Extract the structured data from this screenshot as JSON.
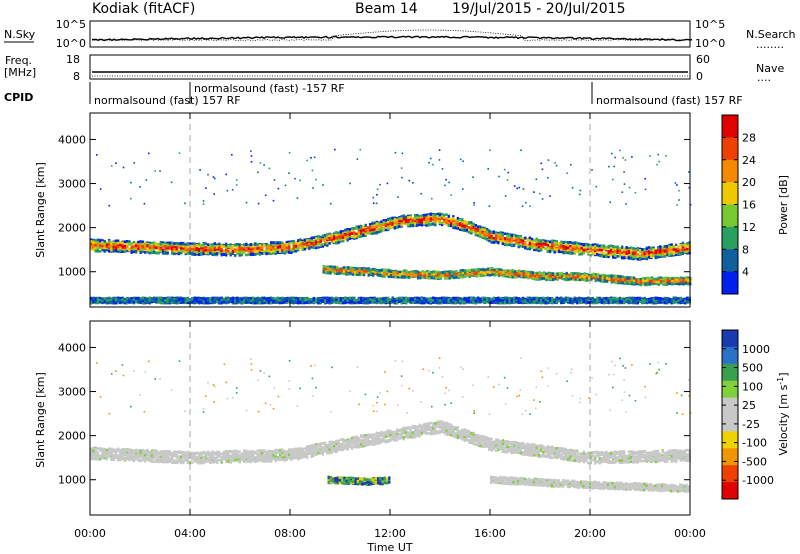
{
  "header": {
    "radar": "Kodiak (fitACF)",
    "beam": "Beam 14",
    "dates": "19/Jul/2015 - 20/Jul/2015"
  },
  "panels": {
    "nsky": {
      "left_label": "N.Sky",
      "right_label": "N.Search",
      "right_dots": "........",
      "ticks_left": [
        "10^5",
        "10^0"
      ],
      "ticks_right": [
        "10^5",
        "10^0"
      ]
    },
    "freq": {
      "left_label_1": "Freq.",
      "left_label_2": "[MHz]",
      "right_label": "Nave",
      "right_dots": "....",
      "ticks_left": [
        "18",
        "8"
      ],
      "ticks_right": [
        "60",
        "0"
      ]
    },
    "cpid": {
      "left_label": "CPID",
      "segments": [
        "normalsound (fast) 157 RF",
        "normalsound (fast) -157 RF",
        "normalsound (fast) 157 RF"
      ]
    }
  },
  "colorbars": {
    "power": {
      "label": "Power [dB]",
      "ticks": [
        "28",
        "24",
        "20",
        "16",
        "12",
        "8",
        "4"
      ],
      "colors": [
        "#e00000",
        "#f04000",
        "#f58a00",
        "#f0c800",
        "#78c832",
        "#2aa060",
        "#1060a0",
        "#0020f0"
      ]
    },
    "velocity": {
      "label": "Velocity [m s^-1]",
      "label_main": "Velocity [m s",
      "label_sup": "-1",
      "label_end": "]",
      "ticks": [
        "1000",
        "500",
        "100",
        "25",
        "-25",
        "-100",
        "-500",
        "-1000"
      ],
      "colors": [
        "#1a3ab0",
        "#2a72c8",
        "#3aa050",
        "#7fd03a",
        "#c8c8c8",
        "#c8c8c8",
        "#f0d200",
        "#f09600",
        "#f04000",
        "#e00000"
      ]
    }
  },
  "chart_data": [
    {
      "type": "heatmap",
      "title": "",
      "quantity": "Power [dB]",
      "xlabel": "",
      "ylabel": "Slant Range [km]",
      "x_ticks": [
        "00:00",
        "04:00",
        "08:00",
        "12:00",
        "16:00",
        "20:00",
        "00:00"
      ],
      "y_ticks": [
        "1000",
        "2000",
        "3000",
        "4000"
      ],
      "xlim": [
        0,
        24
      ],
      "ylim": [
        200,
        4600
      ],
      "color_scale": [
        0,
        30
      ],
      "bands": [
        {
          "name": "upper echo band",
          "points": [
            [
              0,
              1600
            ],
            [
              4,
              1520
            ],
            [
              6,
              1500
            ],
            [
              8,
              1560
            ],
            [
              9.3,
              1700
            ],
            [
              11,
              1950
            ],
            [
              12.5,
              2150
            ],
            [
              14,
              2200
            ],
            [
              15,
              2050
            ],
            [
              16,
              1800
            ],
            [
              18,
              1600
            ],
            [
              20,
              1500
            ],
            [
              22,
              1400
            ],
            [
              24,
              1550
            ]
          ],
          "power_db": 22
        },
        {
          "name": "lower echo band",
          "points": [
            [
              9.3,
              1050
            ],
            [
              11,
              1000
            ],
            [
              12,
              960
            ],
            [
              14,
              920
            ],
            [
              16,
              1000
            ],
            [
              18,
              900
            ],
            [
              20,
              880
            ],
            [
              22,
              780
            ],
            [
              24,
              800
            ]
          ],
          "power_db": 18
        },
        {
          "name": "near-range clutter",
          "points": [
            [
              0,
              350
            ],
            [
              24,
              350
            ]
          ],
          "power_db": 6
        }
      ],
      "gridlines_x_dashed": [
        4,
        20
      ]
    },
    {
      "type": "heatmap",
      "title": "",
      "quantity": "Velocity [m s^-1]",
      "xlabel": "Time UT",
      "ylabel": "Slant Range [km]",
      "x_ticks": [
        "00:00",
        "04:00",
        "08:00",
        "12:00",
        "16:00",
        "20:00",
        "00:00"
      ],
      "y_ticks": [
        "1000",
        "2000",
        "3000",
        "4000"
      ],
      "xlim": [
        0,
        24
      ],
      "ylim": [
        200,
        4600
      ],
      "color_scale": [
        -1000,
        1000
      ],
      "bands": [
        {
          "name": "ground scatter",
          "points": [
            [
              0,
              1600
            ],
            [
              4,
              1500
            ],
            [
              8,
              1560
            ],
            [
              11,
              1900
            ],
            [
              14,
              2200
            ],
            [
              16,
              1800
            ],
            [
              20,
              1500
            ],
            [
              24,
              1550
            ]
          ],
          "velocity": 0
        },
        {
          "name": "ionospheric echo",
          "points": [
            [
              9.5,
              1000
            ],
            [
              11,
              960
            ],
            [
              12,
              980
            ]
          ],
          "velocity": 400
        },
        {
          "name": "lower band",
          "points": [
            [
              16,
              1000
            ],
            [
              20,
              880
            ],
            [
              24,
              800
            ]
          ],
          "velocity": 0
        }
      ],
      "gridlines_x_dashed": [
        4,
        20
      ]
    }
  ]
}
